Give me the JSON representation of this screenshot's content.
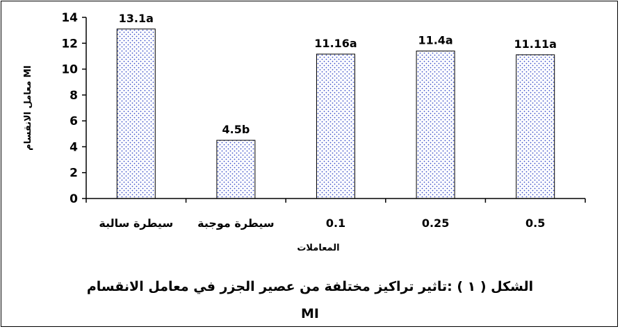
{
  "chart_data": {
    "type": "bar",
    "categories": [
      "سيطرة سالبة",
      "سيطرة موجبة",
      "0.1",
      "0.25",
      "0.5"
    ],
    "values": [
      13.1,
      4.5,
      11.16,
      11.4,
      11.11
    ],
    "data_labels": [
      "13.1a",
      "4.5b",
      "11.16a",
      "11.4a",
      "11.11a"
    ],
    "xlabel": "المعاملات",
    "ylabel": "معامل الانقسام MI",
    "ylim": [
      0,
      14
    ],
    "yticks": [
      0,
      2,
      4,
      6,
      8,
      10,
      12,
      14
    ],
    "grid": false,
    "legend": "none",
    "bar_fill": "#ffffff",
    "bar_dot_color": "#3a4ec8",
    "bar_edge": "#000000"
  },
  "caption": {
    "line1": "الشكل ( ١ ) :تاثير تراكيز مختلفة من عصير الجزر في معامل الانقسام",
    "line2": "MI"
  }
}
